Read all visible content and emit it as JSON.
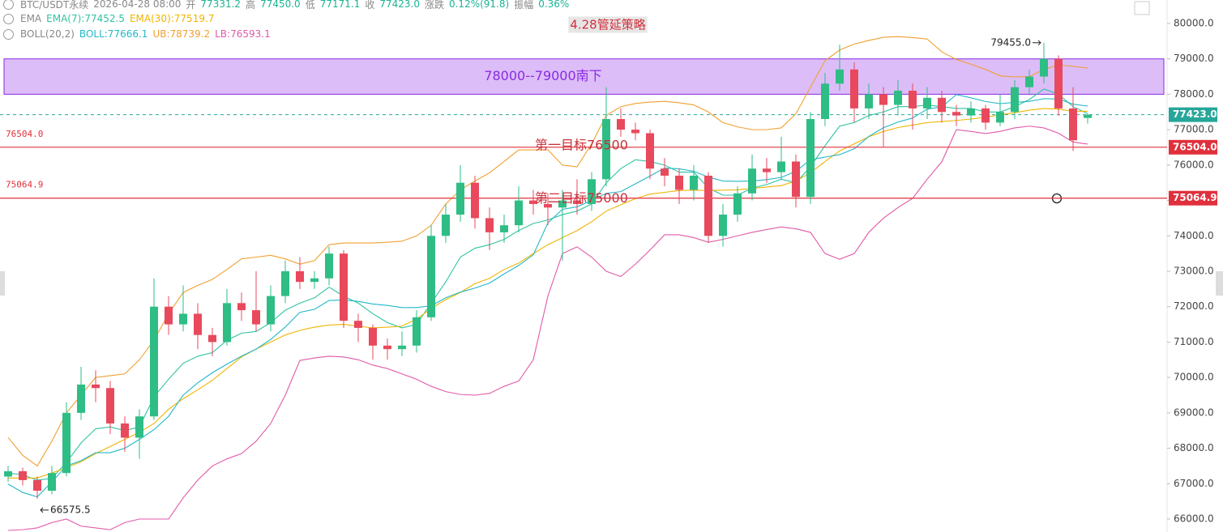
{
  "chart_data": {
    "type": "candlestick",
    "title": "4.28管延策略",
    "info": [
      "BTC/USDT永续",
      "2026-04-28 08:00",
      "开",
      "77331.2",
      "高",
      "77450.0",
      "低",
      "77171.1",
      "收",
      "77423.0",
      "涨跌",
      "0.12%(91.8)",
      "振幅",
      "0.36%"
    ],
    "ema_label": "EMA",
    "boll_label": "BOLL(20,2)",
    "ylim": [
      65634,
      80663
    ],
    "yticks": [
      {
        "value": 66000,
        "label": "66000.0"
      },
      {
        "value": 67000,
        "label": "67000.0"
      },
      {
        "value": 68000,
        "label": "68000.0"
      },
      {
        "value": 69000,
        "label": "69000.0"
      },
      {
        "value": 70000,
        "label": "70000.0"
      },
      {
        "value": 71000,
        "label": "71000.0"
      },
      {
        "value": 72000,
        "label": "72000.0"
      },
      {
        "value": 73000,
        "label": "73000.0"
      },
      {
        "value": 74000,
        "label": "74000.0"
      },
      {
        "value": 75000,
        "label": "75000.0"
      },
      {
        "value": 76000,
        "label": "76000.0"
      },
      {
        "value": 77000,
        "label": "77000.0"
      },
      {
        "value": 78000,
        "label": "78000.0"
      },
      {
        "value": 79000,
        "label": "79000.0"
      },
      {
        "value": 80000,
        "label": "80000.0"
      }
    ],
    "up_color": "#2ebd85",
    "down_color": "#e8495c",
    "open": [
      67200,
      67350,
      67100,
      66800,
      67300,
      69000,
      69800,
      69700,
      68700,
      68300,
      68900,
      72000,
      71500,
      71800,
      71200,
      71000,
      72100,
      71900,
      71500,
      72300,
      73000,
      72700,
      72800,
      73500,
      71600,
      71400,
      70900,
      70800,
      70900,
      71700,
      74000,
      74600,
      75500,
      74500,
      74100,
      74300,
      75000,
      74900,
      74800,
      75000,
      74900,
      75600,
      77300,
      77000,
      76900,
      75900,
      75700,
      75300,
      75700,
      74000,
      74600,
      75200,
      75900,
      75800,
      76100,
      75100,
      77300,
      78300,
      78700,
      77600,
      78000,
      77700,
      78100,
      77600,
      77900,
      77500,
      77400,
      77600,
      77200,
      77500,
      78200,
      78500,
      79000,
      77600,
      77331.2
    ],
    "high": [
      67500,
      67450,
      67200,
      67500,
      69300,
      70300,
      70200,
      69900,
      68900,
      69100,
      72800,
      72300,
      72600,
      72100,
      71400,
      72500,
      72400,
      73000,
      72600,
      73300,
      73400,
      73000,
      73700,
      73600,
      71800,
      71500,
      71100,
      71300,
      71900,
      74300,
      74900,
      76000,
      75700,
      74800,
      74600,
      75400,
      75300,
      75200,
      75300,
      75600,
      75800,
      78200,
      77600,
      77200,
      77000,
      76200,
      75900,
      76000,
      75800,
      74900,
      75400,
      76300,
      76200,
      76800,
      76300,
      77500,
      78600,
      79400,
      78900,
      78300,
      78200,
      78400,
      78300,
      78200,
      78100,
      77700,
      77800,
      77700,
      78000,
      78400,
      78700,
      79455,
      79100,
      78200,
      77450
    ],
    "low": [
      67050,
      66950,
      66575.5,
      66700,
      67200,
      68800,
      69300,
      68400,
      67900,
      67700,
      68800,
      71200,
      71300,
      70800,
      70600,
      70900,
      71600,
      71300,
      71300,
      72100,
      72500,
      72500,
      72600,
      71400,
      71000,
      70500,
      70500,
      70600,
      70700,
      71600,
      73800,
      74400,
      74200,
      73600,
      73800,
      74100,
      74600,
      74300,
      73300,
      74600,
      74700,
      75400,
      76800,
      76700,
      75600,
      75400,
      74900,
      75000,
      73800,
      73700,
      74400,
      75000,
      75500,
      75600,
      74800,
      74900,
      77100,
      78100,
      77200,
      77300,
      76500,
      77400,
      77000,
      77300,
      77200,
      77100,
      77200,
      77000,
      77100,
      77300,
      78000,
      78300,
      77400,
      76400,
      77171.1
    ],
    "close": [
      67350,
      67100,
      66800,
      67300,
      69000,
      69800,
      69700,
      68700,
      68300,
      68900,
      72000,
      71500,
      71800,
      71200,
      71000,
      72100,
      71900,
      71500,
      72300,
      73000,
      72700,
      72800,
      73500,
      71600,
      71400,
      70900,
      70800,
      70900,
      71700,
      74000,
      74600,
      75500,
      74500,
      74100,
      74300,
      75000,
      74900,
      74800,
      75000,
      74900,
      75600,
      77300,
      77000,
      76900,
      75900,
      75700,
      75300,
      75700,
      74000,
      74600,
      75200,
      75900,
      75800,
      76100,
      75100,
      77300,
      78300,
      78700,
      77600,
      78000,
      77700,
      78100,
      77600,
      77900,
      77500,
      77400,
      77600,
      77200,
      77500,
      78200,
      78500,
      79000,
      77600,
      76700,
      77423
    ],
    "series": [
      {
        "name": "EMA(7):77452.5",
        "color": "#2fc3a2",
        "values": [
          67300,
          67250,
          67100,
          67150,
          67600,
          68150,
          68550,
          68600,
          68500,
          68600,
          69450,
          69950,
          70400,
          70600,
          70700,
          71050,
          71250,
          71300,
          71550,
          71900,
          72100,
          72250,
          72550,
          72300,
          72100,
          71800,
          71550,
          71400,
          71500,
          72100,
          72700,
          73400,
          73650,
          73750,
          73900,
          74150,
          74350,
          74450,
          74600,
          74700,
          74900,
          75500,
          75900,
          76150,
          76100,
          76000,
          75800,
          75800,
          75350,
          75150,
          75150,
          75350,
          75450,
          75600,
          75500,
          75950,
          76550,
          77100,
          77200,
          77400,
          77500,
          77650,
          77650,
          77700,
          77650,
          77600,
          77600,
          77500,
          77500,
          77650,
          77850,
          78150,
          78000,
          77650,
          77452.5
        ]
      },
      {
        "name": "EMA(30):77519.7",
        "color": "#f0b400",
        "values": [
          67160,
          67160,
          67160,
          67300,
          67450,
          67620,
          67850,
          68050,
          68250,
          68450,
          68700,
          69100,
          69400,
          69650,
          69920,
          70250,
          70580,
          70800,
          71000,
          71200,
          71330,
          71420,
          71480,
          71500,
          71450,
          71400,
          71420,
          71450,
          71650,
          71950,
          72200,
          72400,
          72650,
          72800,
          73050,
          73230,
          73500,
          73750,
          73950,
          74150,
          74400,
          74700,
          74880,
          75050,
          75180,
          75230,
          75280,
          75290,
          75280,
          75290,
          75300,
          75340,
          75380,
          75420,
          75550,
          75780,
          76100,
          76400,
          76600,
          76800,
          76950,
          77060,
          77130,
          77200,
          77230,
          77260,
          77300,
          77350,
          77420,
          77480,
          77550,
          77600,
          77580,
          77520,
          77519.7
        ]
      },
      {
        "name": "BOLL:77666.1",
        "color": "#22b8c8",
        "values": [
          66990,
          66750,
          66625,
          67050,
          67500,
          67650,
          67875,
          67875,
          68000,
          68250,
          68525,
          68900,
          69500,
          69850,
          70135,
          70375,
          70600,
          70800,
          71075,
          71425,
          71840,
          71925,
          72175,
          72190,
          72150,
          72075,
          72035,
          71975,
          71975,
          72025,
          72250,
          72410,
          72525,
          72665,
          72925,
          73165,
          73465,
          74365,
          74750,
          74820,
          75000,
          75200,
          75250,
          75470,
          75690,
          75915,
          75895,
          75825,
          75660,
          75550,
          75540,
          75550,
          75590,
          75650,
          75825,
          76150,
          76225,
          76295,
          76460,
          76810,
          77055,
          77215,
          77330,
          77580,
          77645,
          77990,
          77900,
          77795,
          77735,
          77770,
          77800,
          77875,
          77865,
          77720,
          77666.1
        ]
      },
      {
        "name": "UB:78739.2",
        "color": "#f0a030",
        "values": [
          68300,
          67800,
          67500,
          68200,
          69000,
          69500,
          70000,
          70050,
          70100,
          70500,
          71050,
          71800,
          72400,
          72600,
          72770,
          73050,
          73350,
          73400,
          73450,
          73350,
          73200,
          73300,
          73750,
          73800,
          73800,
          73800,
          73820,
          73850,
          74000,
          74300,
          74900,
          75300,
          75550,
          75780,
          76100,
          76430,
          76430,
          76430,
          76000,
          75950,
          76600,
          77400,
          77650,
          77740,
          77780,
          77800,
          77760,
          77700,
          77500,
          77200,
          77080,
          77000,
          77000,
          77050,
          77450,
          78200,
          78950,
          79250,
          79420,
          79520,
          79610,
          79630,
          79600,
          79560,
          79200,
          78980,
          78850,
          78700,
          78520,
          78490,
          78500,
          78700,
          78830,
          78790,
          78739.2
        ]
      },
      {
        "name": "LB:76593.1",
        "color": "#e05aa8",
        "values": [
          65680,
          65700,
          65750,
          65900,
          66000,
          65800,
          65750,
          65700,
          65900,
          66000,
          66000,
          66000,
          66600,
          67100,
          67500,
          67700,
          67850,
          68200,
          68700,
          69500,
          70480,
          70550,
          70600,
          70580,
          70500,
          70350,
          70250,
          70100,
          69950,
          69750,
          69600,
          69520,
          69500,
          69550,
          69750,
          69900,
          70500,
          72300,
          73500,
          73690,
          73400,
          73000,
          72850,
          73200,
          73600,
          74030,
          74030,
          73950,
          73820,
          73900,
          74000,
          74100,
          74180,
          74250,
          74200,
          74100,
          73500,
          73340,
          73500,
          74100,
          74500,
          74800,
          75060,
          75600,
          76090,
          77000,
          76950,
          76890,
          76950,
          77050,
          77100,
          77050,
          76900,
          76650,
          76593.1
        ]
      }
    ],
    "zone": {
      "from": 78000,
      "to": 79000,
      "label": "78000--79000南下",
      "color": "#8a2be2"
    },
    "levels": [
      {
        "value": 76504.0,
        "label": "76504.0",
        "color": "#e0303c"
      },
      {
        "value": 75064.9,
        "label": "75064.9",
        "color": "#e0303c"
      }
    ],
    "last_price": {
      "value": 77423.0,
      "label": "77423.0",
      "color": "#26a69a"
    },
    "targets": [
      {
        "value": 76500,
        "text": "第一目标76500"
      },
      {
        "value": 75000,
        "text": "第二目标75000"
      }
    ],
    "extremes": [
      {
        "index": 71,
        "value": 79455.0,
        "label": "79455.0"
      },
      {
        "index": 2,
        "value": 66575.5,
        "label": "66575.5"
      }
    ]
  }
}
